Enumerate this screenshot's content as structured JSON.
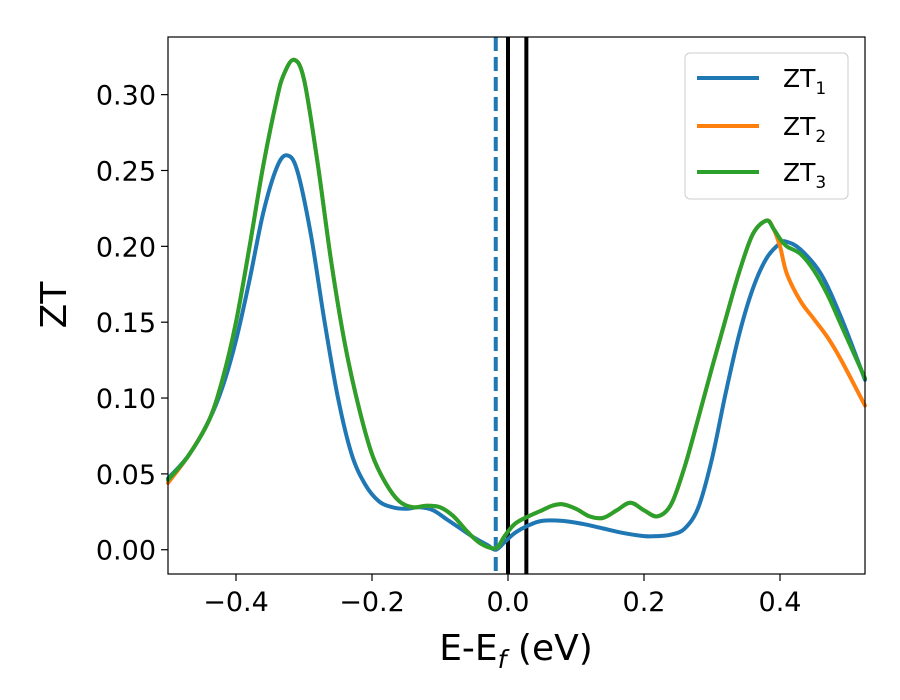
{
  "chart_data": {
    "type": "line",
    "xlabel": "E-E",
    "xlabel_sub": "f",
    "xlabel_unit": " (eV)",
    "ylabel": "ZT",
    "xlim": [
      -0.5,
      0.525
    ],
    "ylim": [
      -0.016,
      0.338
    ],
    "xticks": [
      -0.4,
      -0.2,
      0.0,
      0.2,
      0.4
    ],
    "xtick_labels": [
      "−0.4",
      "−0.2",
      "0.0",
      "0.2",
      "0.4"
    ],
    "yticks": [
      0.0,
      0.05,
      0.1,
      0.15,
      0.2,
      0.25,
      0.3
    ],
    "ytick_labels": [
      "0.00",
      "0.05",
      "0.10",
      "0.15",
      "0.20",
      "0.25",
      "0.30"
    ],
    "grid": false,
    "legend_position": "top-right",
    "vlines": [
      {
        "x": -0.018,
        "style": "dashed",
        "color": "#1f77b4"
      },
      {
        "x": 0.0,
        "style": "solid",
        "color": "#000000"
      },
      {
        "x": 0.027,
        "style": "solid",
        "color": "#000000"
      }
    ],
    "series": [
      {
        "name": "ZT",
        "name_sub": "1",
        "color": "#1f77b4",
        "x": [
          -0.5,
          -0.47,
          -0.44,
          -0.42,
          -0.4,
          -0.38,
          -0.36,
          -0.34,
          -0.325,
          -0.31,
          -0.29,
          -0.27,
          -0.25,
          -0.23,
          -0.21,
          -0.19,
          -0.17,
          -0.15,
          -0.13,
          -0.11,
          -0.09,
          -0.07,
          -0.05,
          -0.03,
          -0.018,
          -0.005,
          0.01,
          0.03,
          0.05,
          0.08,
          0.11,
          0.14,
          0.17,
          0.2,
          0.22,
          0.24,
          0.26,
          0.28,
          0.3,
          0.32,
          0.34,
          0.36,
          0.38,
          0.4,
          0.41,
          0.43,
          0.46,
          0.49,
          0.525
        ],
        "y": [
          0.047,
          0.062,
          0.085,
          0.107,
          0.138,
          0.178,
          0.222,
          0.252,
          0.26,
          0.25,
          0.208,
          0.151,
          0.1,
          0.063,
          0.043,
          0.032,
          0.028,
          0.027,
          0.028,
          0.026,
          0.02,
          0.014,
          0.008,
          0.003,
          0.0,
          0.005,
          0.011,
          0.016,
          0.019,
          0.019,
          0.017,
          0.014,
          0.011,
          0.009,
          0.009,
          0.01,
          0.014,
          0.028,
          0.06,
          0.103,
          0.142,
          0.172,
          0.192,
          0.202,
          0.203,
          0.198,
          0.182,
          0.153,
          0.112
        ]
      },
      {
        "name": "ZT",
        "name_sub": "2",
        "color": "#ff7f0e",
        "x": [
          -0.5,
          -0.47,
          -0.44,
          -0.42,
          -0.4,
          -0.38,
          -0.36,
          -0.34,
          -0.33,
          -0.315,
          -0.3,
          -0.28,
          -0.26,
          -0.24,
          -0.22,
          -0.2,
          -0.18,
          -0.16,
          -0.14,
          -0.12,
          -0.1,
          -0.08,
          -0.06,
          -0.04,
          -0.018,
          -0.005,
          0.01,
          0.03,
          0.05,
          0.065,
          0.08,
          0.1,
          0.12,
          0.14,
          0.16,
          0.18,
          0.2,
          0.22,
          0.24,
          0.26,
          0.28,
          0.3,
          0.32,
          0.34,
          0.36,
          0.38,
          0.39,
          0.4,
          0.41,
          0.43,
          0.45,
          0.47,
          0.49,
          0.525
        ],
        "y": [
          0.044,
          0.062,
          0.085,
          0.112,
          0.15,
          0.2,
          0.253,
          0.297,
          0.313,
          0.323,
          0.31,
          0.255,
          0.19,
          0.136,
          0.095,
          0.063,
          0.044,
          0.032,
          0.028,
          0.029,
          0.028,
          0.022,
          0.012,
          0.004,
          0.001,
          0.009,
          0.017,
          0.022,
          0.026,
          0.029,
          0.03,
          0.027,
          0.022,
          0.021,
          0.026,
          0.031,
          0.026,
          0.022,
          0.03,
          0.055,
          0.087,
          0.12,
          0.152,
          0.183,
          0.208,
          0.217,
          0.212,
          0.2,
          0.182,
          0.164,
          0.152,
          0.14,
          0.125,
          0.095
        ]
      },
      {
        "name": "ZT",
        "name_sub": "3",
        "color": "#2ca02c",
        "x": [
          -0.5,
          -0.47,
          -0.44,
          -0.42,
          -0.4,
          -0.38,
          -0.36,
          -0.34,
          -0.33,
          -0.315,
          -0.3,
          -0.28,
          -0.26,
          -0.24,
          -0.22,
          -0.2,
          -0.18,
          -0.16,
          -0.14,
          -0.12,
          -0.1,
          -0.08,
          -0.06,
          -0.04,
          -0.018,
          -0.005,
          0.01,
          0.03,
          0.05,
          0.065,
          0.08,
          0.1,
          0.12,
          0.14,
          0.16,
          0.18,
          0.2,
          0.22,
          0.24,
          0.26,
          0.28,
          0.3,
          0.32,
          0.34,
          0.36,
          0.38,
          0.39,
          0.4,
          0.41,
          0.43,
          0.45,
          0.47,
          0.49,
          0.525
        ],
        "y": [
          0.046,
          0.062,
          0.085,
          0.112,
          0.15,
          0.2,
          0.253,
          0.297,
          0.313,
          0.323,
          0.31,
          0.255,
          0.19,
          0.136,
          0.095,
          0.063,
          0.044,
          0.032,
          0.028,
          0.029,
          0.028,
          0.022,
          0.012,
          0.004,
          0.001,
          0.009,
          0.017,
          0.022,
          0.026,
          0.029,
          0.03,
          0.027,
          0.022,
          0.021,
          0.026,
          0.031,
          0.026,
          0.022,
          0.03,
          0.055,
          0.087,
          0.12,
          0.152,
          0.183,
          0.208,
          0.217,
          0.212,
          0.205,
          0.2,
          0.195,
          0.184,
          0.168,
          0.148,
          0.113
        ]
      }
    ]
  }
}
